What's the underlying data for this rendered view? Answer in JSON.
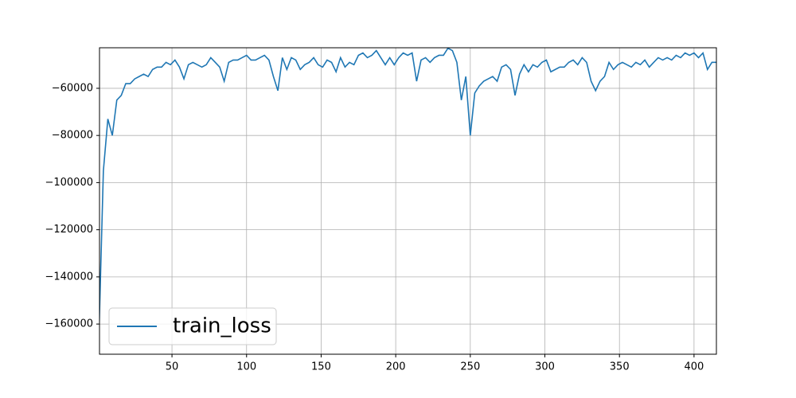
{
  "chart_data": {
    "type": "line",
    "x": [
      1,
      4,
      7,
      10,
      13,
      16,
      19,
      22,
      25,
      28,
      31,
      34,
      37,
      40,
      43,
      46,
      49,
      52,
      55,
      58,
      61,
      64,
      67,
      70,
      73,
      76,
      79,
      82,
      85,
      88,
      91,
      94,
      97,
      100,
      103,
      106,
      109,
      112,
      115,
      118,
      121,
      124,
      127,
      130,
      133,
      136,
      139,
      142,
      145,
      148,
      151,
      154,
      157,
      160,
      163,
      166,
      169,
      172,
      175,
      178,
      181,
      184,
      187,
      190,
      193,
      196,
      199,
      202,
      205,
      208,
      211,
      214,
      217,
      220,
      223,
      226,
      229,
      232,
      235,
      238,
      241,
      244,
      247,
      250,
      253,
      256,
      259,
      262,
      265,
      268,
      271,
      274,
      277,
      280,
      283,
      286,
      289,
      292,
      295,
      298,
      301,
      304,
      307,
      310,
      313,
      316,
      319,
      322,
      325,
      328,
      331,
      334,
      337,
      340,
      343,
      346,
      349,
      352,
      355,
      358,
      361,
      364,
      367,
      370,
      373,
      376,
      379,
      382,
      385,
      388,
      391,
      394,
      397,
      400,
      403,
      406,
      409,
      412,
      415
    ],
    "series": [
      {
        "name": "train_loss",
        "color": "#1f77b4",
        "values": [
          -165000,
          -95000,
          -73000,
          -80000,
          -65000,
          -63000,
          -58000,
          -58000,
          -56000,
          -55000,
          -54000,
          -55000,
          -52000,
          -51000,
          -51000,
          -49000,
          -50000,
          -48000,
          -51000,
          -56000,
          -50000,
          -49000,
          -50000,
          -51000,
          -50000,
          -47000,
          -49000,
          -51000,
          -57000,
          -49000,
          -48000,
          -48000,
          -47000,
          -46000,
          -48000,
          -48000,
          -47000,
          -46000,
          -48000,
          -55000,
          -61000,
          -47000,
          -52000,
          -47000,
          -48000,
          -52000,
          -50000,
          -49000,
          -47000,
          -50000,
          -51000,
          -48000,
          -49000,
          -53000,
          -47000,
          -51000,
          -49000,
          -50000,
          -46000,
          -45000,
          -47000,
          -46000,
          -44000,
          -47000,
          -50000,
          -47000,
          -50000,
          -47000,
          -45000,
          -46000,
          -45000,
          -57000,
          -48000,
          -47000,
          -49000,
          -47000,
          -46000,
          -46000,
          -43000,
          -44000,
          -49000,
          -65000,
          -55000,
          -80000,
          -62000,
          -59000,
          -57000,
          -56000,
          -55000,
          -57000,
          -51000,
          -50000,
          -52000,
          -63000,
          -54000,
          -50000,
          -53000,
          -50000,
          -51000,
          -49000,
          -48000,
          -53000,
          -52000,
          -51000,
          -51000,
          -49000,
          -48000,
          -50000,
          -47000,
          -49000,
          -57000,
          -61000,
          -57000,
          -55000,
          -49000,
          -52000,
          -50000,
          -49000,
          -50000,
          -51000,
          -49000,
          -50000,
          -48000,
          -51000,
          -49000,
          -47000,
          -48000,
          -47000,
          -48000,
          -46000,
          -47000,
          -45000,
          -46000,
          -45000,
          -47000,
          -45000,
          -52000,
          -49000,
          -49000
        ]
      }
    ],
    "xlim": [
      1.4,
      415
    ],
    "xticks": [
      50,
      100,
      150,
      200,
      250,
      300,
      350,
      400
    ],
    "ylim": [
      -172800,
      -42800
    ],
    "yticks": [
      {
        "value": -60000,
        "label": "−60000"
      },
      {
        "value": -80000,
        "label": "−80000"
      },
      {
        "value": -100000,
        "label": "−100000"
      },
      {
        "value": -120000,
        "label": "−120000"
      },
      {
        "value": -140000,
        "label": "−140000"
      },
      {
        "value": -160000,
        "label": "−160000"
      }
    ],
    "grid": true,
    "legend": "lower left"
  }
}
